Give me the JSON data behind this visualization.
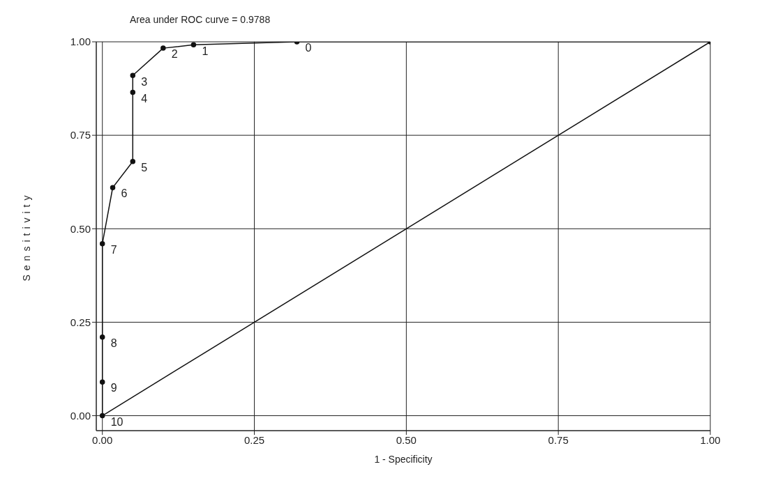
{
  "chart_data": {
    "type": "line",
    "title": "Area under ROC curve = 0.9788",
    "xlabel": "1 - Specificity",
    "ylabel": "Sensitivity",
    "series": [
      {
        "color": "#111111",
        "marker": "circle",
        "x": [
          0,
          0,
          0,
          0,
          0.017,
          0.05,
          0.05,
          0.05,
          0.1,
          0.15,
          0.32,
          1
        ],
        "values": [
          0,
          0.09,
          0.21,
          0.46,
          0.61,
          0.68,
          0.865,
          0.91,
          0.983,
          0.992,
          1.0,
          1.0
        ]
      },
      {
        "color": "#111111",
        "marker": "none",
        "x": [
          0,
          1
        ],
        "values": [
          0,
          1
        ]
      }
    ],
    "annotations": [
      {
        "text": "0",
        "x": 0.32,
        "y": 1.0
      },
      {
        "text": "1",
        "x": 0.15,
        "y": 0.992
      },
      {
        "text": "2",
        "x": 0.1,
        "y": 0.983
      },
      {
        "text": "3",
        "x": 0.05,
        "y": 0.91
      },
      {
        "text": "4",
        "x": 0.05,
        "y": 0.865
      },
      {
        "text": "5",
        "x": 0.05,
        "y": 0.68
      },
      {
        "text": "6",
        "x": 0.017,
        "y": 0.61
      },
      {
        "text": "7",
        "x": 0,
        "y": 0.46
      },
      {
        "text": "8",
        "x": 0,
        "y": 0.21
      },
      {
        "text": "9",
        "x": 0,
        "y": 0.09
      },
      {
        "text": "10",
        "x": 0,
        "y": 0
      }
    ],
    "xlim": [
      -0.01,
      1
    ],
    "ylim": [
      -0.04,
      1
    ],
    "xticks": [
      {
        "value": 0,
        "label": "0.00"
      },
      {
        "value": 0.25,
        "label": "0.25"
      },
      {
        "value": 0.5,
        "label": "0.50"
      },
      {
        "value": 0.75,
        "label": "0.75"
      },
      {
        "value": 1,
        "label": "1.00"
      }
    ],
    "yticks": [
      {
        "value": 0,
        "label": "0.00"
      },
      {
        "value": 0.25,
        "label": "0.25"
      },
      {
        "value": 0.5,
        "label": "0.50"
      },
      {
        "value": 0.75,
        "label": "0.75"
      },
      {
        "value": 1,
        "label": "1.00"
      }
    ],
    "grid": true
  }
}
